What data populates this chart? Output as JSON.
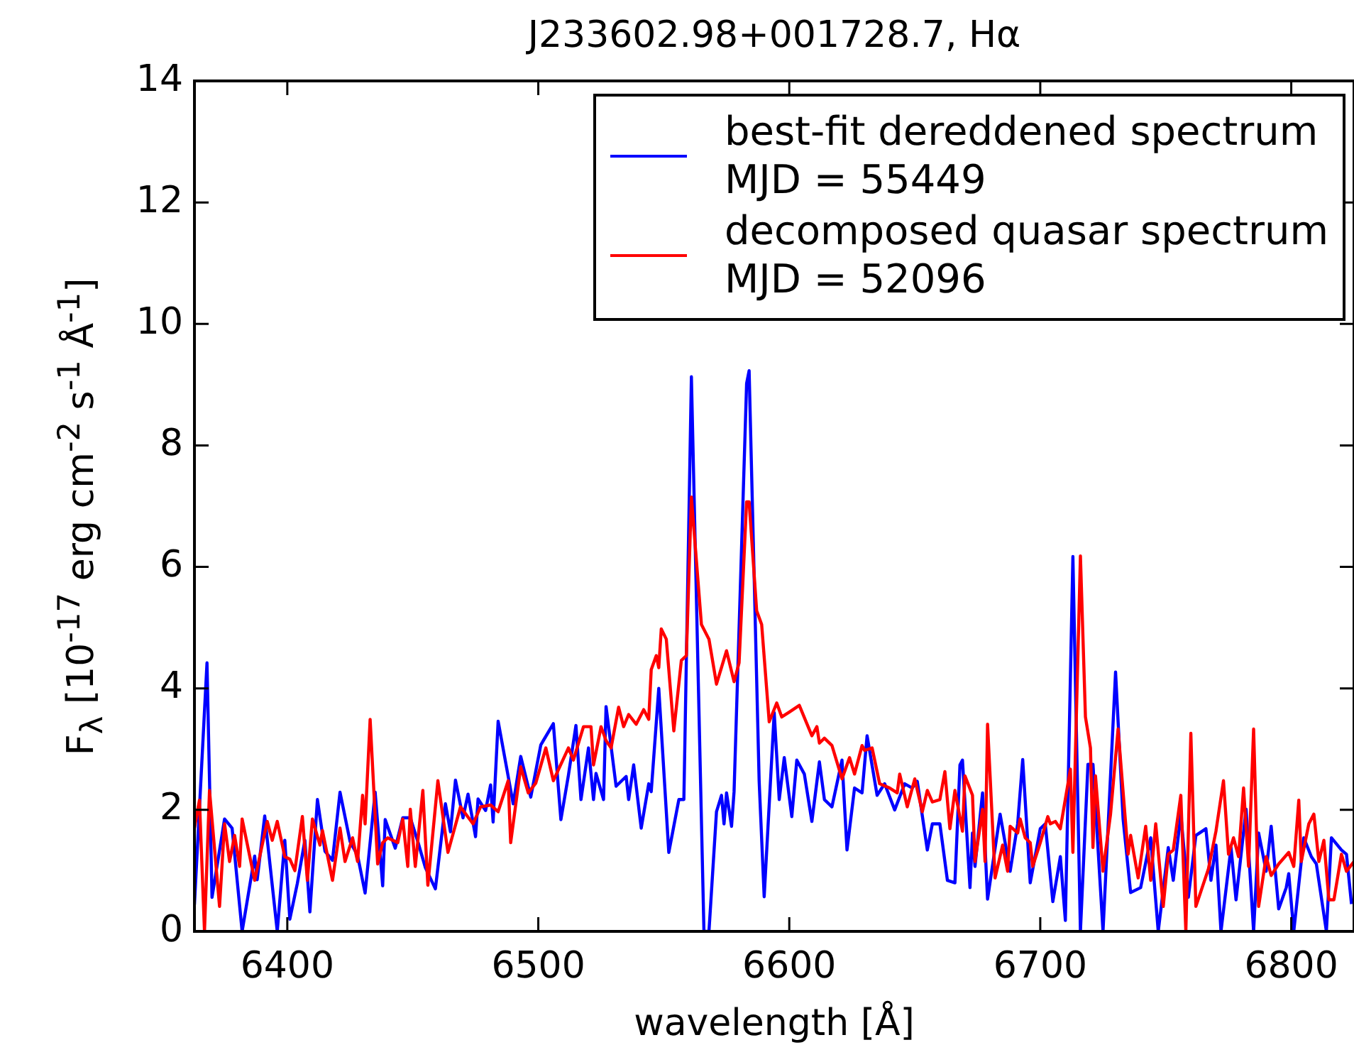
{
  "chart_data": {
    "type": "line",
    "title": "J233602.98+001728.7, Hα",
    "xlabel": "wavelength [Å]",
    "ylabel": "F$_{λ}$ [10$^{-17}$ erg cm$^{-2}$ s$^{-1}$ Å$^{-1}$]",
    "xlim": [
      6363,
      6825
    ],
    "xticks": [
      6400,
      6500,
      6600,
      6700,
      6800
    ],
    "ylim": [
      0,
      14
    ],
    "yticks": [
      0,
      2,
      4,
      6,
      8,
      10,
      12,
      14
    ],
    "grid": false,
    "legend": "top right",
    "marker": "none",
    "line_style": "solid",
    "series": [
      {
        "name": "best-fit dereddened spectrum\n MJD = 55449",
        "color": "#0000ff",
        "x": [
          6363,
          6368,
          6370,
          6375,
          6378,
          6382,
          6387,
          6388,
          6391,
          6396,
          6399,
          6401,
          6404,
          6407,
          6409,
          6412,
          6415,
          6418,
          6421,
          6425,
          6428,
          6431,
          6435,
          6438,
          6439,
          6443,
          6446,
          6449,
          6452,
          6455,
          6459,
          6463,
          6465,
          6467,
          6470,
          6472,
          6475,
          6476,
          6479,
          6481,
          6482,
          6484,
          6490,
          6493,
          6497,
          6501,
          6506,
          6509,
          6512,
          6515,
          6517,
          6520,
          6522,
          6523,
          6526,
          6527,
          6531,
          6535,
          6536,
          6538,
          6541,
          6544,
          6545,
          6548,
          6552,
          6556,
          6558,
          6561,
          6566,
          6568,
          6571,
          6573,
          6574,
          6575,
          6577,
          6578,
          6583,
          6584,
          6588,
          6590,
          6594,
          6596,
          6598,
          6601,
          6603,
          6606,
          6609,
          6612,
          6614,
          6617,
          6621,
          6623,
          6626,
          6629,
          6631,
          6635,
          6638,
          6642,
          6646,
          6649,
          6651,
          6655,
          6657,
          6660,
          6663,
          6666,
          6668,
          6669,
          6672,
          6673,
          6674,
          6677,
          6679,
          6684,
          6688,
          6691,
          6693,
          6696,
          6700,
          6702,
          6705,
          6708,
          6710,
          6713,
          6716,
          6719,
          6721,
          6725,
          6730,
          6733,
          6736,
          6740,
          6744,
          6747,
          6751,
          6753,
          6756,
          6759,
          6762,
          6766,
          6768,
          6770,
          6772,
          6776,
          6778,
          6782,
          6785,
          6787,
          6790,
          6792,
          6795,
          6798,
          6799,
          6801,
          6805,
          6808,
          6810,
          6814,
          6816,
          6820,
          6822,
          6824
        ],
        "values": [
          0.44,
          4.42,
          0.56,
          1.85,
          1.7,
          0,
          1.24,
          0.85,
          1.9,
          0,
          1.5,
          0.2,
          0.79,
          1.5,
          0.32,
          2.17,
          1.32,
          1.17,
          2.29,
          1.48,
          1.25,
          0.63,
          2.29,
          0.75,
          1.84,
          1.37,
          1.87,
          1.87,
          1.48,
          1.05,
          0.7,
          2.1,
          1.64,
          2.49,
          1.87,
          2.26,
          1.56,
          2.18,
          1.99,
          2.41,
          1.8,
          3.46,
          2.1,
          2.88,
          2.21,
          3.07,
          3.42,
          1.84,
          2.57,
          3.39,
          2.17,
          3.02,
          2.17,
          2.6,
          2.17,
          3.7,
          2.39,
          2.55,
          2.17,
          2.74,
          1.7,
          2.43,
          2.3,
          4.0,
          1.3,
          2.17,
          2.17,
          9.13,
          0,
          0,
          1.97,
          2.24,
          1.77,
          2.28,
          1.73,
          2.3,
          9.02,
          9.23,
          2.47,
          0.57,
          3.6,
          2.17,
          2.86,
          1.89,
          2.82,
          2.59,
          1.81,
          2.79,
          2.17,
          2.05,
          2.82,
          1.34,
          2.36,
          2.28,
          3.22,
          2.24,
          2.43,
          2.0,
          2.43,
          2.36,
          2.47,
          1.34,
          1.77,
          1.77,
          0.84,
          0.8,
          2.74,
          2.82,
          0.72,
          1.62,
          1.07,
          2.28,
          0.53,
          1.93,
          0.99,
          1.77,
          2.83,
          0.8,
          1.69,
          1.77,
          0.49,
          1.23,
          0.18,
          6.17,
          0,
          2.75,
          2.75,
          0,
          4.27,
          1.85,
          0.64,
          0.72,
          1.54,
          0,
          1.38,
          0.84,
          1.93,
          0.56,
          1.58,
          1.69,
          0.84,
          1.42,
          0,
          1.38,
          0.52,
          2.01,
          0,
          1.62,
          0.99,
          1.73,
          0.37,
          0.72,
          0.95,
          0,
          1.54,
          1.23,
          1.11,
          0,
          1.54,
          1.34,
          1.27,
          0.45
        ]
      },
      {
        "name": "decomposed quasar spectrum\n MJD = 52096",
        "color": "#ff0000",
        "x": [
          6363,
          6365,
          6367,
          6369,
          6373,
          6375,
          6377,
          6379,
          6381,
          6382,
          6387,
          6392,
          6394,
          6396,
          6399,
          6401,
          6403,
          6406,
          6408,
          6410,
          6413,
          6414,
          6418,
          6421,
          6423,
          6426,
          6428,
          6430,
          6431,
          6433,
          6436,
          6438,
          6440,
          6444,
          6446,
          6448,
          6449,
          6451,
          6454,
          6456,
          6460,
          6464,
          6469,
          6474,
          6477,
          6481,
          6484,
          6488,
          6489,
          6493,
          6496,
          6499,
          6503,
          6506,
          6512,
          6514,
          6518,
          6521,
          6522,
          6525,
          6527,
          6529,
          6532,
          6534,
          6536,
          6539,
          6542,
          6544,
          6545,
          6547,
          6548,
          6549,
          6551,
          6554,
          6557,
          6559,
          6561,
          6565,
          6568,
          6571,
          6575,
          6578,
          6580,
          6583,
          6584,
          6587,
          6589,
          6592,
          6595,
          6597,
          6600,
          6604,
          6609,
          6611,
          6612,
          6614,
          6617,
          6621,
          6624,
          6626,
          6629,
          6630,
          6633,
          6636,
          6640,
          6643,
          6644,
          6647,
          6650,
          6653,
          6655,
          6657,
          6660,
          6662,
          6664,
          6666,
          6669,
          6670,
          6673,
          6674,
          6677,
          6678,
          6679,
          6682,
          6685,
          6687,
          6688,
          6691,
          6692,
          6694,
          6696,
          6697,
          6700,
          6703,
          6704,
          6706,
          6708,
          6712,
          6713,
          6716,
          6718,
          6720,
          6721,
          6722,
          6725,
          6728,
          6731,
          6735,
          6736,
          6739,
          6742,
          6744,
          6746,
          6749,
          6751,
          6753,
          6756,
          6758,
          6760,
          6762,
          6767,
          6770,
          6773,
          6775,
          6777,
          6779,
          6781,
          6783,
          6785,
          6787,
          6790,
          6792,
          6795,
          6799,
          6801,
          6803,
          6804,
          6807,
          6809,
          6811,
          6813,
          6815,
          6817,
          6820,
          6822,
          6825
        ],
        "values": [
          1.7,
          2.16,
          0,
          2.32,
          0.41,
          1.77,
          1.15,
          1.58,
          1.07,
          1.85,
          0.84,
          1.81,
          1.5,
          1.81,
          1.23,
          1.19,
          1.0,
          1.89,
          0.84,
          1.85,
          1.42,
          1.66,
          0.84,
          1.7,
          1.15,
          1.54,
          1.15,
          2.24,
          1.77,
          3.49,
          1.11,
          1.46,
          1.54,
          1.46,
          1.85,
          1.07,
          2.01,
          1.07,
          2.32,
          0.76,
          2.48,
          1.3,
          2.05,
          1.77,
          2.05,
          2.08,
          1.97,
          2.48,
          1.46,
          2.71,
          2.28,
          2.44,
          3.02,
          2.48,
          3.02,
          2.82,
          3.37,
          3.37,
          2.74,
          3.37,
          3.14,
          3.02,
          3.69,
          3.37,
          3.57,
          3.41,
          3.65,
          3.49,
          4.31,
          4.54,
          4.34,
          4.98,
          4.81,
          3.3,
          4.46,
          4.54,
          7.15,
          5.05,
          4.81,
          4.07,
          4.62,
          4.11,
          4.42,
          7.07,
          7.07,
          5.28,
          5.05,
          3.45,
          3.76,
          3.53,
          3.61,
          3.72,
          3.22,
          3.37,
          3.1,
          3.18,
          3.06,
          2.51,
          2.86,
          2.59,
          3.06,
          2.98,
          3.02,
          2.43,
          2.36,
          2.28,
          2.59,
          2.05,
          2.51,
          1.97,
          2.32,
          2.13,
          2.17,
          2.63,
          1.69,
          2.32,
          1.65,
          2.56,
          2.24,
          1.15,
          2.01,
          1.15,
          3.41,
          0.88,
          1.42,
          0.99,
          1.73,
          1.62,
          1.85,
          1.54,
          1.46,
          1.07,
          1.46,
          1.89,
          1.77,
          1.81,
          1.69,
          2.67,
          1.3,
          6.18,
          3.53,
          3.02,
          1.38,
          2.56,
          0.99,
          1.93,
          3.33,
          1.27,
          1.58,
          0.88,
          1.73,
          0.84,
          1.77,
          0.41,
          1.27,
          1.34,
          2.24,
          0,
          3.26,
          0.41,
          1.03,
          1.65,
          2.48,
          1.27,
          1.54,
          1.23,
          2.36,
          1.07,
          3.33,
          0.41,
          1.23,
          0.92,
          1.11,
          1.3,
          1.07,
          2.16,
          1.15,
          1.77,
          1.93,
          1.15,
          1.5,
          0.52,
          0.52,
          1.27,
          0.99,
          1.15
        ]
      }
    ]
  }
}
